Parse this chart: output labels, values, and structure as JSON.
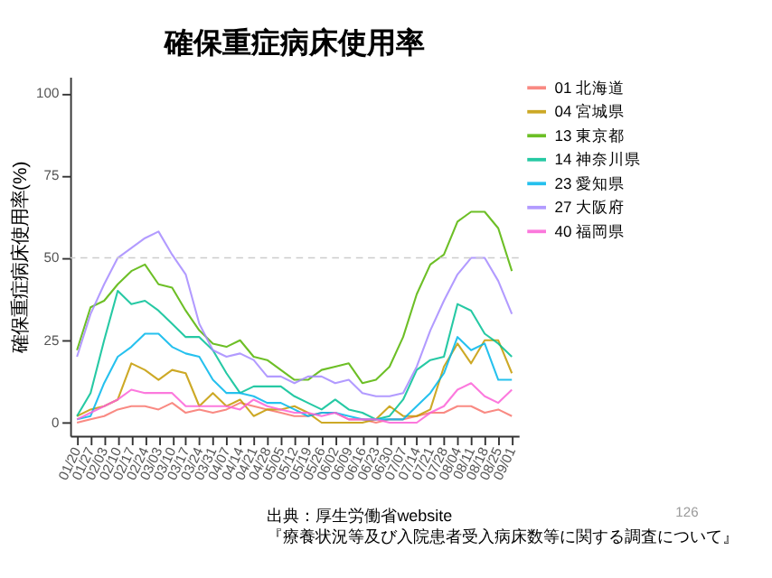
{
  "chart_data": {
    "type": "line",
    "title": "確保重症病床使用率",
    "ylabel": "確保重症病床使用率(%)",
    "categories": [
      "01/20",
      "01/27",
      "02/03",
      "02/10",
      "02/17",
      "02/24",
      "03/03",
      "03/10",
      "03/17",
      "03/24",
      "03/31",
      "04/07",
      "04/14",
      "04/21",
      "04/28",
      "05/05",
      "05/12",
      "05/19",
      "05/26",
      "06/02",
      "06/09",
      "06/16",
      "06/23",
      "06/30",
      "07/07",
      "07/14",
      "07/21",
      "07/28",
      "08/04",
      "08/11",
      "08/18",
      "08/25",
      "09/01"
    ],
    "series": [
      {
        "name": "01 北海道",
        "color": "#f8766d",
        "values": [
          0,
          1,
          2,
          4,
          5,
          5,
          4,
          6,
          3,
          4,
          3,
          4,
          6,
          5,
          4,
          3,
          2,
          2,
          3,
          3,
          1,
          1,
          0,
          1,
          1,
          2,
          3,
          3,
          5,
          5,
          3,
          4,
          2
        ]
      },
      {
        "name": "04 宮城県",
        "color": "#c49a00",
        "values": [
          2,
          4,
          5,
          7,
          18,
          16,
          13,
          16,
          15,
          5,
          9,
          5,
          7,
          2,
          4,
          4,
          5,
          3,
          0,
          0,
          0,
          0,
          1,
          5,
          2,
          2,
          4,
          17,
          24,
          18,
          25,
          25,
          15
        ]
      },
      {
        "name": "13 東京都",
        "color": "#53b400",
        "values": [
          22,
          35,
          37,
          42,
          46,
          48,
          42,
          41,
          34,
          28,
          24,
          23,
          25,
          20,
          19,
          16,
          13,
          13,
          16,
          17,
          18,
          12,
          13,
          17,
          26,
          39,
          48,
          51,
          61,
          64,
          64,
          59,
          46
        ]
      },
      {
        "name": "14 神奈川県",
        "color": "#00c094",
        "values": [
          2,
          9,
          25,
          40,
          36,
          37,
          34,
          30,
          26,
          26,
          22,
          15,
          9,
          11,
          11,
          11,
          8,
          6,
          4,
          7,
          4,
          3,
          1,
          2,
          7,
          16,
          19,
          20,
          36,
          34,
          27,
          24,
          20
        ]
      },
      {
        "name": "23 愛知県",
        "color": "#00b6eb",
        "values": [
          1,
          2,
          12,
          20,
          23,
          27,
          27,
          23,
          21,
          20,
          13,
          9,
          9,
          8,
          6,
          6,
          4,
          2,
          3,
          3,
          2,
          1,
          1,
          1,
          1,
          5,
          9,
          15,
          26,
          22,
          24,
          13,
          13
        ]
      },
      {
        "name": "27 大阪府",
        "color": "#a58aff",
        "values": [
          20,
          33,
          42,
          50,
          53,
          56,
          58,
          51,
          45,
          30,
          22,
          20,
          21,
          19,
          14,
          14,
          12,
          14,
          14,
          12,
          13,
          9,
          8,
          8,
          9,
          17,
          28,
          37,
          45,
          50,
          50,
          43,
          33
        ]
      },
      {
        "name": "40 福岡県",
        "color": "#fb61d7",
        "values": [
          1,
          3,
          5,
          7,
          10,
          9,
          9,
          9,
          5,
          5,
          5,
          5,
          4,
          7,
          5,
          4,
          3,
          3,
          2,
          3,
          1,
          1,
          1,
          0,
          0,
          0,
          3,
          5,
          10,
          12,
          8,
          6,
          10
        ]
      }
    ],
    "ylim": [
      -4,
      105
    ],
    "yticks": [
      0,
      25,
      50,
      75,
      100
    ],
    "grid": false,
    "legend": "right",
    "line_style": "solid",
    "marker": "none",
    "ref_lines": [
      {
        "axis": "y",
        "value": 50,
        "label": null,
        "color": "#cccccc",
        "line_style": "dashed"
      }
    ],
    "annotations": [
      "出典：厚生労働省website",
      "『療養状況等及び入院患者受入病床数等に関する調査について』",
      "126"
    ]
  }
}
